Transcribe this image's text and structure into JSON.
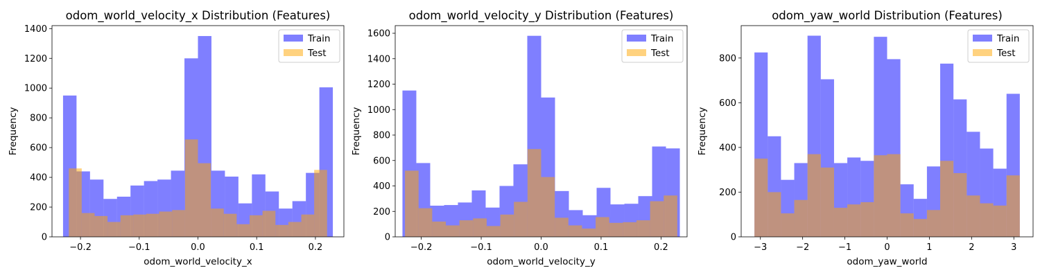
{
  "colors": {
    "train": "#0000ff",
    "test": "#ffa500"
  },
  "chart_data": [
    {
      "type": "bar",
      "title": "odom_world_velocity_x Distribution (Features)",
      "xlabel": "odom_world_velocity_x",
      "ylabel": "Frequency",
      "xlim": [
        -0.2485,
        0.2485
      ],
      "ylim": [
        0,
        1420
      ],
      "xticks": [
        -0.2,
        -0.1,
        0.0,
        0.1,
        0.2
      ],
      "xtick_labels": [
        "−0.2",
        "−0.1",
        "0.0",
        "0.1",
        "0.2"
      ],
      "yticks": [
        0,
        200,
        400,
        600,
        800,
        1000,
        1200,
        1400
      ],
      "ytick_labels": [
        "0",
        "200",
        "400",
        "600",
        "800",
        "1000",
        "1200",
        "1400"
      ],
      "legend": [
        "Train",
        "Test"
      ],
      "legend_position": "upper right",
      "grid": false,
      "series": [
        {
          "name": "Train",
          "bin_start": -0.2297,
          "bin_width": 0.02297,
          "values": [
            950,
            440,
            385,
            255,
            270,
            345,
            375,
            385,
            445,
            1200,
            1350,
            445,
            405,
            225,
            420,
            305,
            190,
            240,
            430,
            1005
          ]
        },
        {
          "name": "Test",
          "bin_start": -0.2199,
          "bin_width": 0.02199,
          "values": [
            460,
            160,
            140,
            100,
            145,
            150,
            155,
            170,
            180,
            655,
            495,
            190,
            155,
            85,
            145,
            175,
            80,
            100,
            150,
            450
          ]
        }
      ]
    },
    {
      "type": "bar",
      "title": "odom_world_velocity_y Distribution (Features)",
      "xlabel": "odom_world_velocity_y",
      "ylabel": "Frequency",
      "xlim": [
        -0.2435,
        0.2435
      ],
      "ylim": [
        0,
        1660
      ],
      "xticks": [
        -0.2,
        -0.1,
        0.0,
        0.1,
        0.2
      ],
      "xtick_labels": [
        "−0.2",
        "−0.1",
        "0.0",
        "0.1",
        "0.2"
      ],
      "yticks": [
        0,
        200,
        400,
        600,
        800,
        1000,
        1200,
        1400,
        1600
      ],
      "ytick_labels": [
        "0",
        "200",
        "400",
        "600",
        "800",
        "1000",
        "1200",
        "1400",
        "1600"
      ],
      "legend": [
        "Train",
        "Test"
      ],
      "legend_position": "upper right",
      "grid": false,
      "series": [
        {
          "name": "Train",
          "bin_start": -0.2314,
          "bin_width": 0.02314,
          "values": [
            1150,
            580,
            245,
            250,
            270,
            365,
            230,
            400,
            570,
            1580,
            1095,
            360,
            210,
            170,
            385,
            255,
            260,
            320,
            710,
            695
          ]
        },
        {
          "name": "Test",
          "bin_start": -0.2272,
          "bin_width": 0.02272,
          "values": [
            520,
            225,
            120,
            90,
            130,
            145,
            85,
            175,
            275,
            690,
            470,
            150,
            90,
            65,
            155,
            110,
            115,
            130,
            280,
            325
          ]
        }
      ]
    },
    {
      "type": "bar",
      "title": "odom_yaw_world Distribution (Features)",
      "xlabel": "odom_yaw_world",
      "ylabel": "Frequency",
      "xlim": [
        -3.4552,
        3.4552
      ],
      "ylim": [
        0,
        945
      ],
      "xticks": [
        -3,
        -2,
        -1,
        0,
        1,
        2,
        3
      ],
      "xtick_labels": [
        "−3",
        "−2",
        "−1",
        "0",
        "1",
        "2",
        "3"
      ],
      "yticks": [
        0,
        200,
        400,
        600,
        800
      ],
      "ytick_labels": [
        "0",
        "200",
        "400",
        "600",
        "800"
      ],
      "legend": [
        "Train",
        "Test"
      ],
      "legend_position": "upper right",
      "grid": false,
      "series": [
        {
          "name": "Train",
          "bin_start": -3.1411,
          "bin_width": 0.31411,
          "values": [
            825,
            450,
            255,
            330,
            900,
            705,
            330,
            355,
            340,
            895,
            795,
            235,
            170,
            315,
            775,
            615,
            470,
            395,
            305,
            640
          ]
        },
        {
          "name": "Test",
          "bin_start": -3.1411,
          "bin_width": 0.31411,
          "values": [
            350,
            200,
            105,
            165,
            370,
            310,
            130,
            145,
            155,
            365,
            370,
            105,
            80,
            120,
            340,
            285,
            185,
            150,
            140,
            275
          ]
        }
      ]
    }
  ]
}
